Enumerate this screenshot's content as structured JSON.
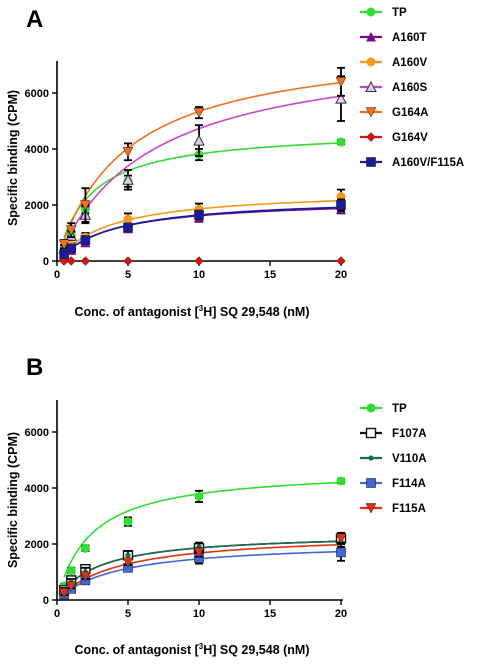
{
  "chart_data": [
    {
      "type": "scatter",
      "panel_label": "A",
      "xlabel_prefix": "Conc. of antagonist [",
      "xlabel_sup": "3",
      "xlabel_suffix": "H] SQ 29,548 (nM)",
      "ylabel": "Specific binding (CPM)",
      "xlim": [
        0,
        20
      ],
      "ylim": [
        0,
        7000
      ],
      "xticks": [
        0,
        5,
        10,
        15,
        20
      ],
      "xtick_labels": [
        "0",
        "5",
        "10",
        "15",
        "20"
      ],
      "yticks": [
        0,
        2000,
        4000,
        6000
      ],
      "ytick_labels": [
        "0",
        "2000",
        "4000",
        "6000"
      ],
      "grid": false,
      "legend_position": "right",
      "fit_curves": true,
      "series": [
        {
          "name": "TP",
          "color": "#33dd33",
          "marker": "circle",
          "x": [
            0.5,
            1,
            2,
            5,
            10,
            20
          ],
          "y": [
            500,
            1000,
            1850,
            2850,
            3800,
            4250
          ],
          "err": [
            80,
            100,
            150,
            200,
            200,
            80
          ],
          "bmax": 4700,
          "kd": 2.3
        },
        {
          "name": "A160T",
          "color": "#7a0a8c",
          "marker": "triangle-up",
          "x": [
            0.5,
            1,
            2,
            5,
            10,
            20
          ],
          "y": [
            200,
            380,
            650,
            1150,
            1550,
            1850
          ],
          "err": [
            60,
            80,
            100,
            100,
            150,
            150
          ],
          "bmax": 2230,
          "kd": 3.8
        },
        {
          "name": "A160V",
          "color": "#f59a1a",
          "marker": "circle",
          "x": [
            0.5,
            1,
            2,
            5,
            10,
            20
          ],
          "y": [
            300,
            550,
            850,
            1500,
            1850,
            2300
          ],
          "err": [
            80,
            100,
            150,
            200,
            200,
            250
          ],
          "bmax": 2550,
          "kd": 3.7
        },
        {
          "name": "A160S",
          "color": "#cc44cc",
          "marker": "triangle-up-open",
          "x": [
            0.5,
            1,
            2,
            5,
            10,
            20
          ],
          "y": [
            450,
            900,
            1650,
            2900,
            4300,
            5800
          ],
          "err": [
            120,
            150,
            300,
            350,
            550,
            800
          ],
          "bmax": 7800,
          "kd": 6.5
        },
        {
          "name": "G164A",
          "color": "#f07020",
          "marker": "triangle-down",
          "x": [
            0.5,
            1,
            2,
            5,
            10,
            20
          ],
          "y": [
            600,
            1100,
            2000,
            3900,
            5300,
            6400
          ],
          "err": [
            150,
            250,
            600,
            300,
            200,
            500
          ],
          "bmax": 7900,
          "kd": 4.8
        },
        {
          "name": "G164V",
          "color": "#dd1111",
          "marker": "diamond",
          "x": [
            0.5,
            1,
            2,
            5,
            10,
            20
          ],
          "y": [
            0,
            0,
            0,
            0,
            0,
            0
          ],
          "err": [
            0,
            0,
            0,
            0,
            0,
            0
          ],
          "bmax": 0,
          "kd": 1
        },
        {
          "name": "A160V/F115A",
          "color": "#1a1a9a",
          "marker": "square",
          "x": [
            0.5,
            1,
            2,
            5,
            10,
            20
          ],
          "y": [
            250,
            450,
            750,
            1200,
            1650,
            2000
          ],
          "err": [
            80,
            80,
            100,
            100,
            150,
            200
          ],
          "bmax": 2300,
          "kd": 4.0
        }
      ]
    },
    {
      "type": "scatter",
      "panel_label": "B",
      "xlabel_prefix": "Conc. of antagonist [",
      "xlabel_sup": "3",
      "xlabel_suffix": "H] SQ 29,548 (nM)",
      "ylabel": "Specific binding (CPM)",
      "xlim": [
        0,
        20
      ],
      "ylim": [
        0,
        7000
      ],
      "xticks": [
        0,
        5,
        10,
        15,
        20
      ],
      "xtick_labels": [
        "0",
        "5",
        "10",
        "15",
        "20"
      ],
      "yticks": [
        0,
        2000,
        4000,
        6000
      ],
      "ytick_labels": [
        "0",
        "2000",
        "4000",
        "6000"
      ],
      "grid": false,
      "legend_position": "right",
      "fit_curves": true,
      "series": [
        {
          "name": "TP",
          "color": "#33dd33",
          "marker": "circle",
          "x": [
            0.5,
            1,
            2,
            5,
            10,
            20
          ],
          "y": [
            500,
            1050,
            1850,
            2800,
            3700,
            4250
          ],
          "err": [
            80,
            100,
            100,
            150,
            200,
            80
          ],
          "bmax": 4700,
          "kd": 2.4
        },
        {
          "name": "F107A",
          "color": "#111111",
          "marker": "square-open",
          "x": [
            0.5,
            1,
            2,
            5,
            10,
            20
          ],
          "y": [
            350,
            700,
            1100,
            1600,
            1850,
            2200
          ],
          "err": [
            80,
            100,
            150,
            150,
            150,
            200
          ],
          "bmax": 2400,
          "kd": 2.9
        },
        {
          "name": "V110A",
          "color": "#1a6a5a",
          "marker": "dot",
          "x": [
            0.5,
            1,
            2,
            5,
            10,
            20
          ],
          "y": [
            350,
            650,
            1000,
            1600,
            1900,
            2100
          ],
          "err": [
            80,
            100,
            150,
            150,
            150,
            200
          ],
          "bmax": 2400,
          "kd": 2.9
        },
        {
          "name": "F114A",
          "color": "#4466dd",
          "marker": "square",
          "x": [
            0.5,
            1,
            2,
            5,
            10,
            20
          ],
          "y": [
            200,
            400,
            700,
            1150,
            1500,
            1700
          ],
          "err": [
            80,
            80,
            100,
            100,
            200,
            300
          ],
          "bmax": 2100,
          "kd": 4.3
        },
        {
          "name": "F115A",
          "color": "#dd3311",
          "marker": "triangle-down",
          "x": [
            0.5,
            1,
            2,
            5,
            10,
            20
          ],
          "y": [
            250,
            500,
            850,
            1350,
            1700,
            2200
          ],
          "err": [
            80,
            80,
            100,
            100,
            150,
            150
          ],
          "bmax": 2400,
          "kd": 4.3
        }
      ]
    }
  ]
}
